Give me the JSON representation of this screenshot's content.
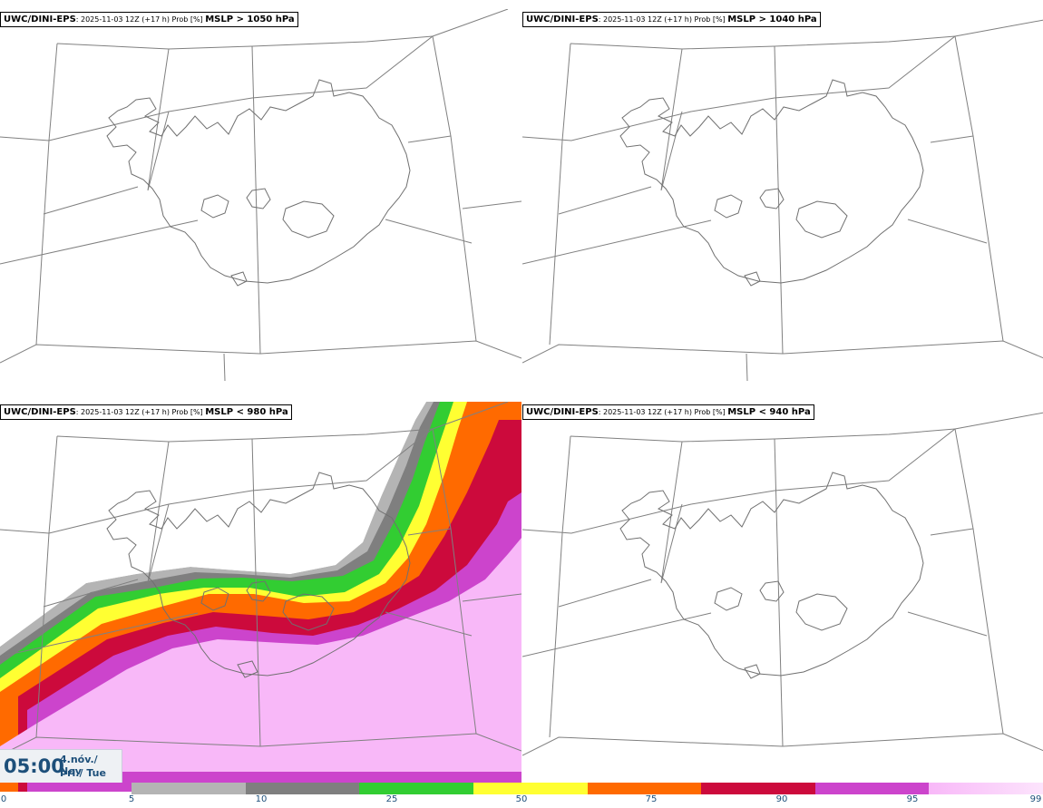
{
  "panels": [
    {
      "model": "UWC/DINI-EPS",
      "meta": ": 2025-11-03 12Z (+17 h) Prob [%] ",
      "variable": "MSLP > 1050 hPa"
    },
    {
      "model": "UWC/DINI-EPS",
      "meta": ": 2025-11-03 12Z (+17 h) Prob [%] ",
      "variable": "MSLP > 1040 hPa"
    },
    {
      "model": "UWC/DINI-EPS",
      "meta": ": 2025-11-03 12Z (+17 h) Prob [%] ",
      "variable": "MSLP < 980 hPa"
    },
    {
      "model": "UWC/DINI-EPS",
      "meta": ": 2025-11-03 12Z (+17 h) Prob [%] ",
      "variable": "MSLP < 940 hPa"
    }
  ],
  "time": {
    "hhmm": "05:00",
    "date_line1": "4.nóv./ Nov",
    "date_line2": "Þri./ Tue"
  },
  "colorbar": {
    "labels": [
      "0",
      "5",
      "10",
      "25",
      "50",
      "75",
      "90",
      "95",
      "99"
    ],
    "colors": [
      "#b4b4b4",
      "#7f7f7f",
      "#32cd32",
      "#ffff32",
      "#ff6a00",
      "#cc0a3c",
      "#cc44cc",
      "#f8b8f8"
    ]
  },
  "colors": {
    "coastline": "#707070",
    "grid": "#808080"
  }
}
